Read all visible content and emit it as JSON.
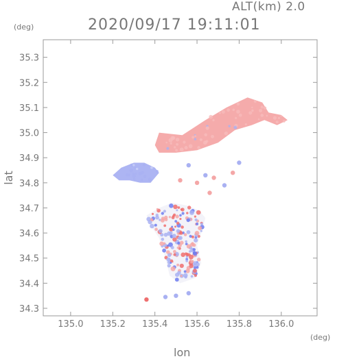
{
  "header": {
    "alt_label": "ALT(km)  2.0",
    "datetime": "2020/09/17 19:11:01",
    "unit_y": "(deg)",
    "unit_x": "(deg)"
  },
  "chart_data": {
    "type": "heatmap",
    "title": "2020/09/17 19:11:01",
    "subtitle": "ALT(km)  2.0",
    "xlabel": "lon",
    "ylabel": "lat",
    "xlim": [
      134.87,
      136.17
    ],
    "ylim": [
      34.27,
      35.37
    ],
    "xticks": [
      "135.0",
      "135.2",
      "135.4",
      "135.6",
      "135.8",
      "136.0"
    ],
    "yticks": [
      "34.3",
      "34.4",
      "34.5",
      "34.6",
      "34.7",
      "34.8",
      "34.9",
      "35.0",
      "35.1",
      "35.2",
      "35.3"
    ],
    "grid": false,
    "colors": {
      "positive": "#f4a7a7",
      "negative": "#a9b1f2",
      "strong_positive": "#ee6f6f",
      "strong_negative": "#6f7cf0",
      "axis": "#9a9a9a"
    },
    "regions": [
      {
        "name": "pink-band-main",
        "sign": "positive",
        "lonlat": [
          [
            135.53,
            34.99
          ],
          [
            135.64,
            35.05
          ],
          [
            135.74,
            35.1
          ],
          [
            135.84,
            35.14
          ],
          [
            135.91,
            35.12
          ],
          [
            135.94,
            35.08
          ],
          [
            136.0,
            35.07
          ],
          [
            136.03,
            35.05
          ],
          [
            135.98,
            35.03
          ],
          [
            135.92,
            35.05
          ],
          [
            135.86,
            35.03
          ],
          [
            135.78,
            35.01
          ],
          [
            135.7,
            34.96
          ],
          [
            135.6,
            34.93
          ],
          [
            135.5,
            34.92
          ],
          [
            135.42,
            34.92
          ],
          [
            135.4,
            34.95
          ],
          [
            135.42,
            35.0
          ]
        ]
      },
      {
        "name": "blue-patch-west",
        "sign": "negative",
        "lonlat": [
          [
            135.2,
            34.83
          ],
          [
            135.24,
            34.86
          ],
          [
            135.3,
            34.88
          ],
          [
            135.35,
            34.88
          ],
          [
            135.4,
            34.86
          ],
          [
            135.42,
            34.84
          ],
          [
            135.38,
            34.8
          ],
          [
            135.33,
            34.8
          ],
          [
            135.28,
            34.81
          ],
          [
            135.23,
            34.81
          ]
        ]
      },
      {
        "name": "mixed-south-body",
        "sign": "mixed",
        "lonlat": [
          [
            135.42,
            34.7
          ],
          [
            135.48,
            34.72
          ],
          [
            135.55,
            34.71
          ],
          [
            135.61,
            34.69
          ],
          [
            135.64,
            34.66
          ],
          [
            135.62,
            34.6
          ],
          [
            135.6,
            34.55
          ],
          [
            135.62,
            34.48
          ],
          [
            135.59,
            34.42
          ],
          [
            135.52,
            34.4
          ],
          [
            135.47,
            34.43
          ],
          [
            135.45,
            34.5
          ],
          [
            135.42,
            34.58
          ],
          [
            135.38,
            34.63
          ],
          [
            135.36,
            34.67
          ]
        ]
      }
    ],
    "points": [
      {
        "lon": 135.36,
        "lat": 34.335,
        "v": 1.0
      },
      {
        "lon": 135.45,
        "lat": 34.345,
        "v": -0.6
      },
      {
        "lon": 135.5,
        "lat": 34.35,
        "v": -0.5
      },
      {
        "lon": 135.56,
        "lat": 34.36,
        "v": -0.4
      },
      {
        "lon": 135.6,
        "lat": 34.8,
        "v": 0.5
      },
      {
        "lon": 135.64,
        "lat": 34.83,
        "v": -0.5
      },
      {
        "lon": 135.68,
        "lat": 34.82,
        "v": 0.6
      },
      {
        "lon": 135.73,
        "lat": 34.79,
        "v": -0.6
      },
      {
        "lon": 135.77,
        "lat": 34.84,
        "v": 0.5
      },
      {
        "lon": 135.8,
        "lat": 34.88,
        "v": -0.5
      },
      {
        "lon": 135.56,
        "lat": 34.87,
        "v": -0.5
      },
      {
        "lon": 135.52,
        "lat": 34.81,
        "v": 0.4
      },
      {
        "lon": 135.66,
        "lat": 34.76,
        "v": 0.6
      }
    ]
  }
}
